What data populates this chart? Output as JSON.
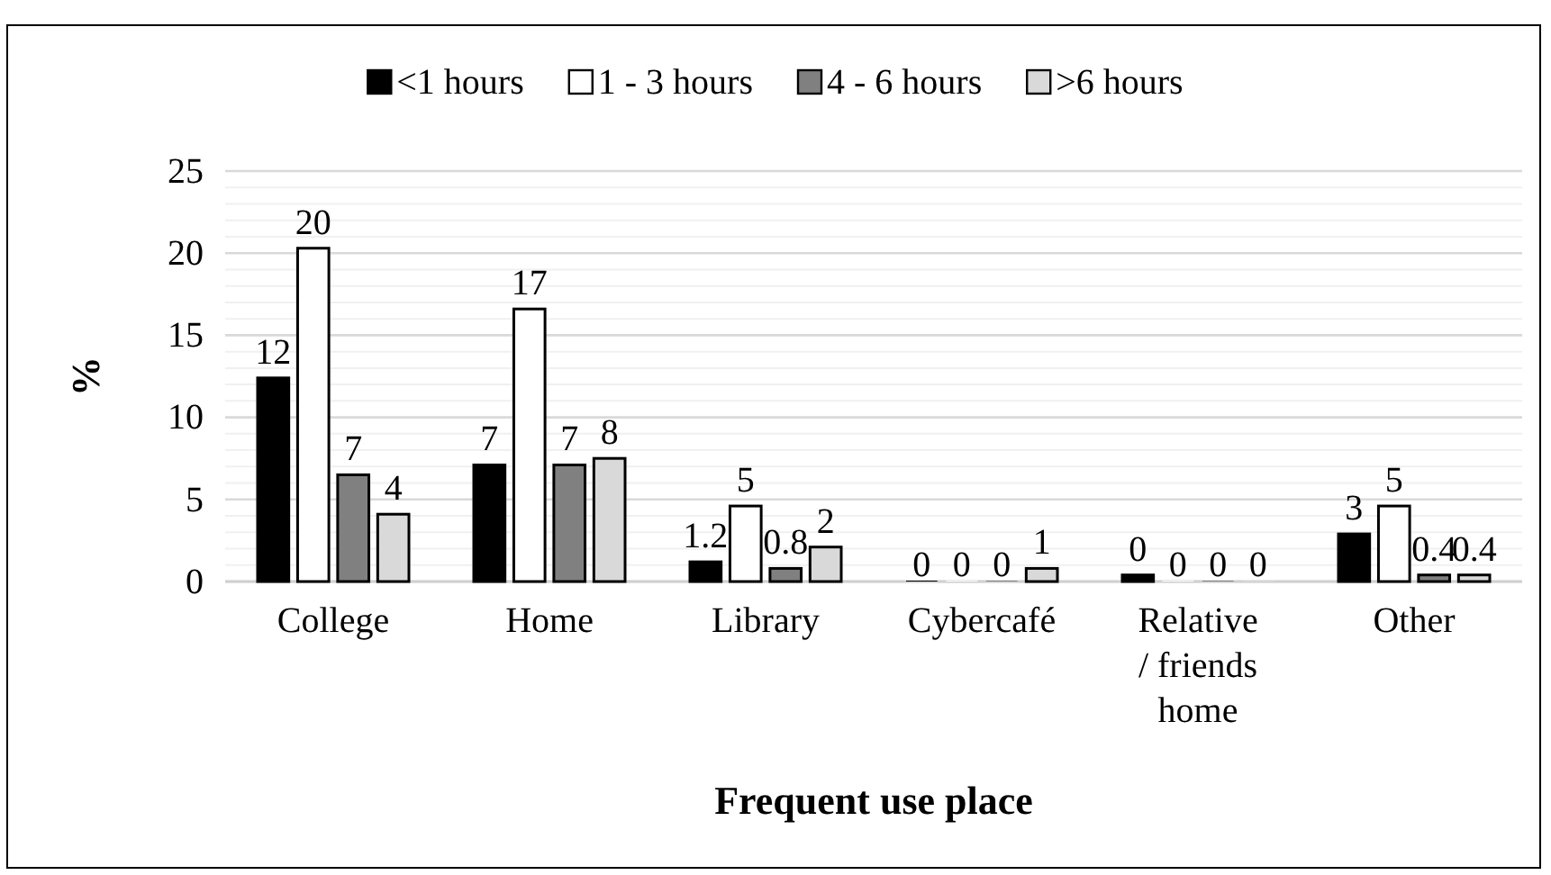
{
  "chart_data": {
    "type": "bar",
    "xlabel": "Frequent use place",
    "ylabel": "%",
    "categories": [
      "College",
      "Home",
      "Library",
      "Cybercafé",
      "Relative / friends home",
      "Other"
    ],
    "series": [
      {
        "name": "<1 hours",
        "color": "#000000",
        "values": [
          12.4,
          7.1,
          1.2,
          0,
          0.4,
          2.9
        ],
        "value_labels": [
          "12",
          "7",
          "1.2",
          "0",
          "0",
          "3"
        ]
      },
      {
        "name": "1 - 3 hours",
        "color": "#ffffff",
        "values": [
          20.3,
          16.6,
          4.6,
          0,
          0,
          4.6
        ],
        "value_labels": [
          "20",
          "17",
          "5",
          "0",
          "0",
          "5"
        ]
      },
      {
        "name": "4 - 6 hours",
        "color": "#808080",
        "values": [
          6.5,
          7.1,
          0.8,
          0,
          0,
          0.4
        ],
        "value_labels": [
          "7",
          "7",
          "0.8",
          "0",
          "0",
          "0.4"
        ]
      },
      {
        "name": ">6 hours",
        "color": "#d9d9d9",
        "values": [
          4.1,
          7.5,
          2.1,
          0.8,
          0,
          0.4
        ],
        "value_labels": [
          "4",
          "8",
          "2",
          "1",
          "0",
          "0.4"
        ]
      }
    ],
    "ylim": [
      0,
      25
    ],
    "yticks": [
      0,
      {
        "value": 1,
        "label": null
      },
      {
        "value": 2,
        "label": null
      },
      {
        "value": 3,
        "label": null
      },
      {
        "value": 4,
        "label": null
      },
      5,
      {
        "value": 6,
        "label": null
      },
      {
        "value": 7,
        "label": null
      },
      {
        "value": 8,
        "label": null
      },
      {
        "value": 9,
        "label": null
      },
      10,
      {
        "value": 11,
        "label": null
      },
      {
        "value": 12,
        "label": null
      },
      {
        "value": 13,
        "label": null
      },
      {
        "value": 14,
        "label": null
      },
      15,
      {
        "value": 16,
        "label": null
      },
      {
        "value": 17,
        "label": null
      },
      {
        "value": 18,
        "label": null
      },
      {
        "value": 19,
        "label": null
      },
      20,
      {
        "value": 21,
        "label": null
      },
      {
        "value": 22,
        "label": null
      },
      {
        "value": 23,
        "label": null
      },
      {
        "value": 24,
        "label": null
      },
      25
    ],
    "grid": "y",
    "legend": "top"
  }
}
